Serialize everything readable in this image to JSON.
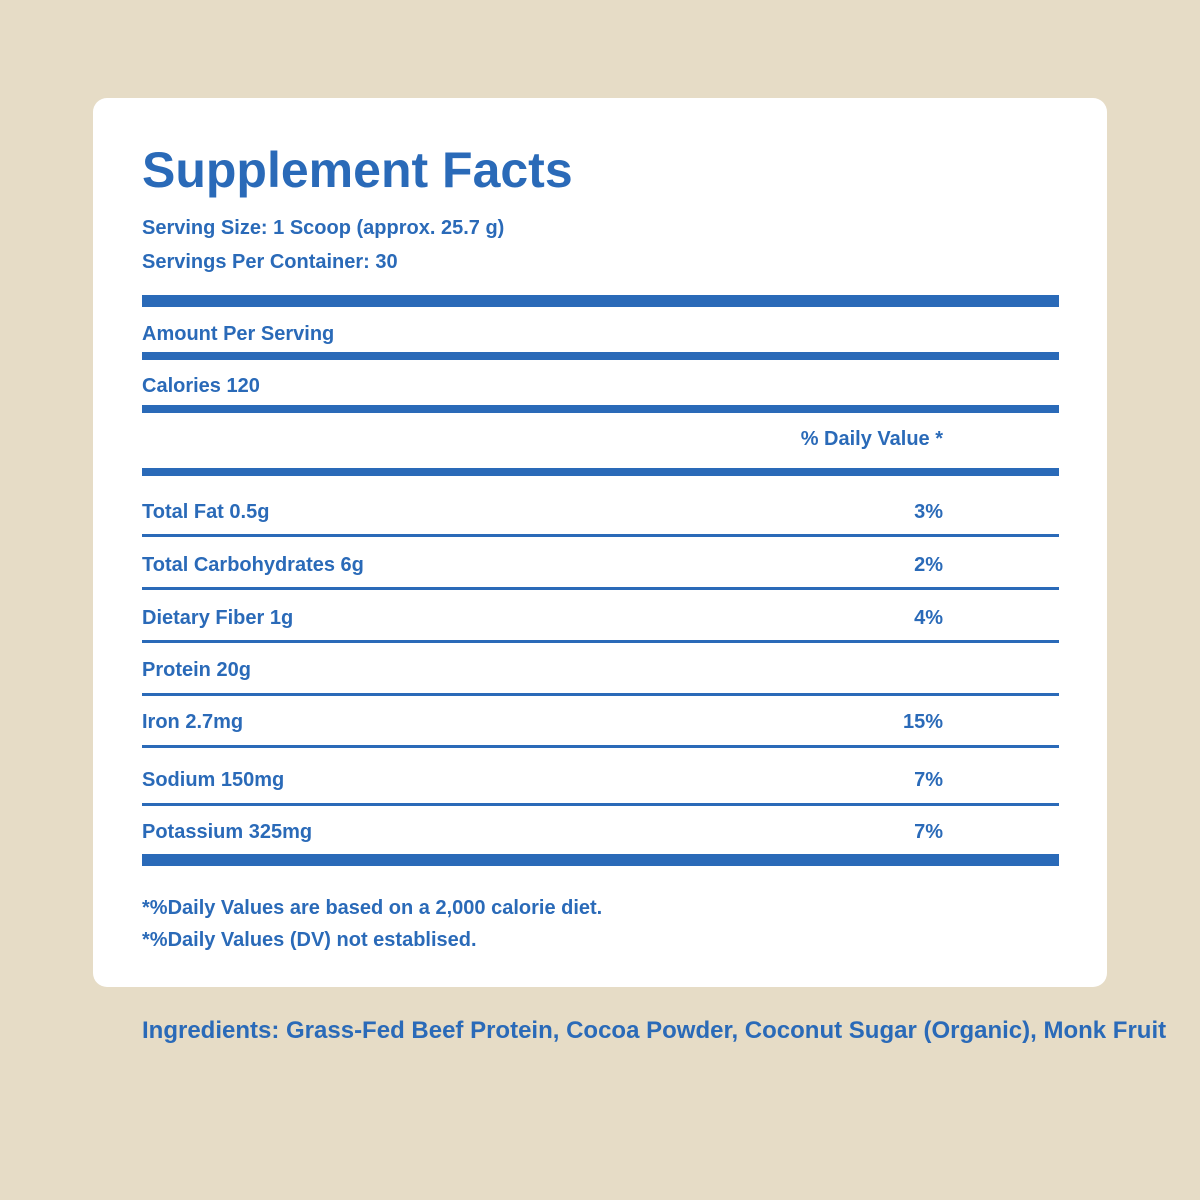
{
  "panel": {
    "title": "Supplement Facts",
    "serving_size": "Serving Size: 1 Scoop (approx. 25.7 g)",
    "servings_per_container": "Servings Per Container: 30",
    "amount_per_serving": "Amount Per Serving",
    "calories": "Calories 120",
    "daily_value_header": "% Daily Value *",
    "nutrients": [
      {
        "label": "Total Fat 0.5g",
        "dv": "3%"
      },
      {
        "label": "Total Carbohydrates 6g",
        "dv": "2%"
      },
      {
        "label": "Dietary Fiber 1g",
        "dv": "4%"
      },
      {
        "label": "Protein 20g",
        "dv": ""
      },
      {
        "label": "Iron 2.7mg",
        "dv": "15%"
      },
      {
        "label": "Sodium 150mg",
        "dv": "7%"
      },
      {
        "label": "Potassium 325mg",
        "dv": "7%"
      }
    ],
    "footnotes": [
      "*%Daily Values are based on a 2,000 calorie diet.",
      "*%Daily Values (DV) not establised."
    ]
  },
  "ingredients": "Ingredients: Grass-Fed Beef Protein, Cocoa Powder, Coconut Sugar (Organic), Monk Fruit",
  "colors": {
    "background": "#e6dcc6",
    "card": "#ffffff",
    "ink": "#2a6ab8"
  }
}
